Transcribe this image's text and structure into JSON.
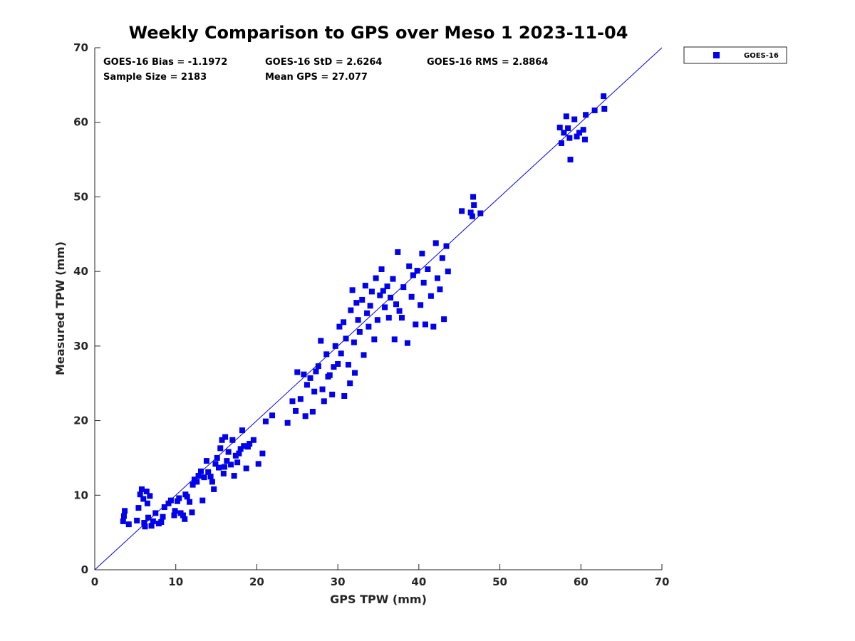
{
  "chart_data": {
    "type": "scatter",
    "title": "Weekly Comparison to GPS over Meso 1 2023-11-04",
    "xlabel": "GPS TPW (mm)",
    "ylabel": "Measured TPW (mm)",
    "xlim": [
      0,
      70
    ],
    "ylim": [
      0,
      70
    ],
    "xticks": [
      "0",
      "10",
      "20",
      "30",
      "40",
      "50",
      "60",
      "70"
    ],
    "yticks": [
      "0",
      "10",
      "20",
      "30",
      "40",
      "50",
      "60",
      "70"
    ],
    "grid": false,
    "legend_position": "outside-top-right",
    "reference_line": {
      "name": "1:1 line",
      "from": [
        0,
        0
      ],
      "to": [
        70,
        70
      ]
    },
    "stats": {
      "bias": "GOES-16 Bias = -1.1972",
      "std": "GOES-16 StD = 2.6264",
      "rms": "GOES-16 RMS = 2.8864",
      "sample_size": "Sample Size = 2183",
      "mean_gps": "Mean GPS = 27.077"
    },
    "series": [
      {
        "name": "GOES-16",
        "color": "#0000ee",
        "marker": "square",
        "points": [
          [
            3.5,
            6.5
          ],
          [
            3.6,
            7.2
          ],
          [
            3.7,
            7.9
          ],
          [
            4.2,
            6.1
          ],
          [
            5.2,
            6.6
          ],
          [
            5.4,
            8.3
          ],
          [
            5.6,
            10.1
          ],
          [
            5.8,
            10.8
          ],
          [
            6.0,
            9.5
          ],
          [
            6.1,
            6.3
          ],
          [
            6.2,
            5.8
          ],
          [
            6.4,
            10.5
          ],
          [
            6.5,
            8.9
          ],
          [
            6.6,
            7.0
          ],
          [
            6.8,
            9.9
          ],
          [
            7.0,
            5.9
          ],
          [
            7.2,
            6.5
          ],
          [
            7.5,
            7.6
          ],
          [
            7.9,
            6.2
          ],
          [
            8.2,
            6.4
          ],
          [
            8.4,
            7.1
          ],
          [
            8.6,
            8.4
          ],
          [
            9.1,
            8.9
          ],
          [
            9.4,
            9.3
          ],
          [
            9.8,
            7.3
          ],
          [
            9.9,
            7.9
          ],
          [
            10.2,
            9.2
          ],
          [
            10.4,
            9.6
          ],
          [
            10.6,
            7.6
          ],
          [
            10.9,
            7.3
          ],
          [
            11.1,
            6.8
          ],
          [
            11.2,
            10.1
          ],
          [
            11.4,
            9.8
          ],
          [
            11.7,
            9.1
          ],
          [
            12.0,
            7.7
          ],
          [
            12.1,
            11.4
          ],
          [
            12.3,
            12.1
          ],
          [
            12.6,
            11.8
          ],
          [
            12.8,
            12.6
          ],
          [
            13.1,
            13.2
          ],
          [
            13.3,
            9.3
          ],
          [
            13.5,
            12.4
          ],
          [
            13.8,
            14.6
          ],
          [
            14.0,
            13.1
          ],
          [
            14.3,
            12.5
          ],
          [
            14.5,
            11.8
          ],
          [
            14.7,
            10.8
          ],
          [
            14.9,
            14.2
          ],
          [
            15.1,
            15.0
          ],
          [
            15.3,
            13.7
          ],
          [
            15.5,
            16.3
          ],
          [
            15.7,
            17.4
          ],
          [
            15.9,
            12.9
          ],
          [
            16.0,
            13.8
          ],
          [
            16.1,
            17.8
          ],
          [
            16.3,
            14.6
          ],
          [
            16.5,
            15.8
          ],
          [
            16.8,
            14.1
          ],
          [
            17.0,
            17.4
          ],
          [
            17.2,
            12.6
          ],
          [
            17.4,
            15.3
          ],
          [
            17.6,
            14.4
          ],
          [
            17.8,
            15.6
          ],
          [
            18.0,
            16.2
          ],
          [
            18.2,
            18.7
          ],
          [
            18.4,
            16.6
          ],
          [
            18.7,
            13.6
          ],
          [
            18.9,
            16.5
          ],
          [
            19.1,
            16.9
          ],
          [
            19.6,
            17.4
          ],
          [
            20.2,
            14.2
          ],
          [
            20.7,
            15.6
          ],
          [
            21.1,
            19.9
          ],
          [
            21.9,
            20.7
          ],
          [
            23.8,
            19.7
          ],
          [
            24.4,
            22.6
          ],
          [
            24.8,
            21.3
          ],
          [
            25.0,
            26.5
          ],
          [
            25.4,
            22.9
          ],
          [
            25.8,
            26.2
          ],
          [
            26.0,
            20.6
          ],
          [
            26.2,
            24.8
          ],
          [
            26.6,
            25.7
          ],
          [
            26.9,
            21.2
          ],
          [
            27.1,
            23.9
          ],
          [
            27.3,
            26.6
          ],
          [
            27.6,
            27.3
          ],
          [
            27.9,
            30.7
          ],
          [
            28.1,
            24.2
          ],
          [
            28.3,
            22.6
          ],
          [
            28.6,
            28.9
          ],
          [
            28.8,
            25.9
          ],
          [
            29.0,
            26.1
          ],
          [
            29.3,
            23.5
          ],
          [
            29.5,
            27.2
          ],
          [
            29.7,
            30.0
          ],
          [
            30.0,
            27.6
          ],
          [
            30.2,
            32.6
          ],
          [
            30.4,
            29.0
          ],
          [
            30.7,
            33.2
          ],
          [
            30.8,
            23.3
          ],
          [
            31.0,
            31.0
          ],
          [
            31.3,
            27.5
          ],
          [
            31.5,
            25.0
          ],
          [
            31.6,
            34.8
          ],
          [
            31.8,
            37.5
          ],
          [
            32.0,
            30.5
          ],
          [
            32.1,
            26.4
          ],
          [
            32.3,
            35.8
          ],
          [
            32.5,
            33.5
          ],
          [
            32.7,
            31.9
          ],
          [
            33.0,
            36.2
          ],
          [
            33.2,
            28.8
          ],
          [
            33.4,
            38.1
          ],
          [
            33.6,
            34.4
          ],
          [
            33.8,
            32.6
          ],
          [
            34.0,
            35.4
          ],
          [
            34.2,
            37.3
          ],
          [
            34.5,
            30.9
          ],
          [
            34.7,
            39.1
          ],
          [
            34.9,
            33.5
          ],
          [
            35.2,
            36.8
          ],
          [
            35.4,
            40.3
          ],
          [
            35.6,
            37.4
          ],
          [
            35.8,
            35.2
          ],
          [
            36.1,
            38.0
          ],
          [
            36.3,
            33.8
          ],
          [
            36.5,
            36.5
          ],
          [
            36.8,
            39.0
          ],
          [
            37.0,
            30.9
          ],
          [
            37.2,
            35.6
          ],
          [
            37.4,
            42.6
          ],
          [
            37.6,
            34.7
          ],
          [
            37.9,
            33.8
          ],
          [
            38.1,
            37.9
          ],
          [
            38.6,
            30.4
          ],
          [
            38.8,
            40.7
          ],
          [
            39.1,
            36.6
          ],
          [
            39.3,
            39.5
          ],
          [
            39.6,
            32.9
          ],
          [
            39.8,
            40.1
          ],
          [
            40.2,
            35.5
          ],
          [
            40.4,
            42.4
          ],
          [
            40.6,
            38.5
          ],
          [
            40.8,
            32.9
          ],
          [
            41.1,
            40.3
          ],
          [
            41.5,
            36.7
          ],
          [
            41.8,
            32.6
          ],
          [
            42.1,
            43.8
          ],
          [
            42.3,
            39.1
          ],
          [
            42.6,
            37.6
          ],
          [
            42.9,
            41.8
          ],
          [
            43.1,
            33.6
          ],
          [
            43.4,
            43.4
          ],
          [
            43.6,
            40.0
          ],
          [
            45.3,
            48.1
          ],
          [
            46.4,
            47.9
          ],
          [
            46.6,
            47.4
          ],
          [
            46.7,
            50.0
          ],
          [
            46.8,
            48.9
          ],
          [
            47.6,
            47.8
          ],
          [
            57.4,
            59.3
          ],
          [
            57.6,
            57.2
          ],
          [
            57.9,
            58.6
          ],
          [
            58.2,
            60.8
          ],
          [
            58.4,
            59.2
          ],
          [
            58.6,
            57.9
          ],
          [
            58.7,
            55.0
          ],
          [
            59.2,
            60.4
          ],
          [
            59.5,
            58.1
          ],
          [
            59.8,
            58.6
          ],
          [
            60.3,
            59.0
          ],
          [
            60.5,
            57.7
          ],
          [
            60.6,
            61.0
          ],
          [
            61.7,
            61.6
          ],
          [
            62.8,
            63.5
          ],
          [
            62.9,
            61.8
          ]
        ]
      }
    ]
  }
}
